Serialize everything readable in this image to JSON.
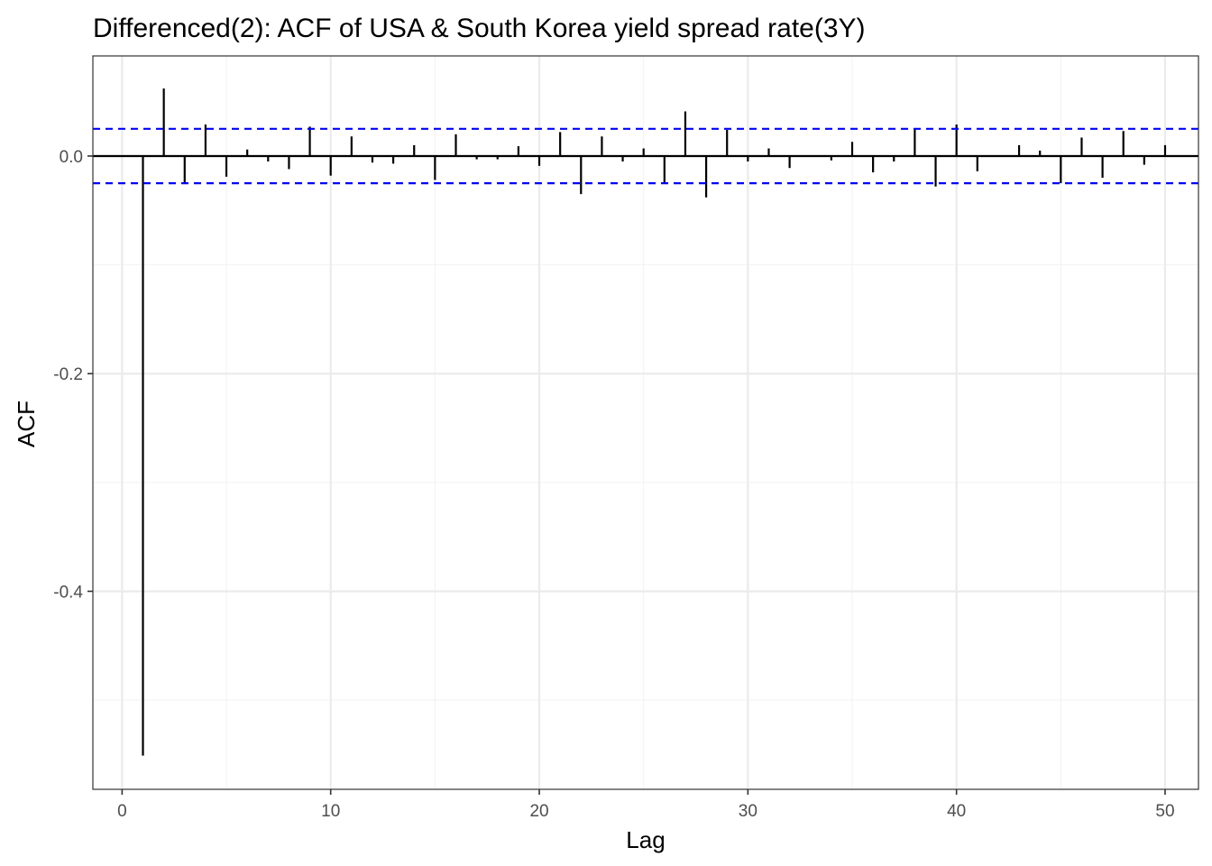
{
  "chart_data": {
    "type": "bar",
    "title": "Differenced(2): ACF of USA & South Korea yield spread rate(3Y)",
    "xlabel": "Lag",
    "ylabel": "ACF",
    "xlim": [
      -1.4,
      51.6
    ],
    "ylim": [
      -0.582,
      0.092
    ],
    "x_ticks": [
      0,
      10,
      20,
      30,
      40,
      50
    ],
    "x_tick_labels": [
      "0",
      "10",
      "20",
      "30",
      "40",
      "50"
    ],
    "y_ticks": [
      0.0,
      -0.2,
      -0.4
    ],
    "y_tick_labels": [
      "0.0",
      "-0.2",
      "-0.4"
    ],
    "grid": true,
    "confidence_band": 0.025,
    "lags": [
      1,
      2,
      3,
      4,
      5,
      6,
      7,
      8,
      9,
      10,
      11,
      12,
      13,
      14,
      15,
      16,
      17,
      18,
      19,
      20,
      21,
      22,
      23,
      24,
      25,
      26,
      27,
      28,
      29,
      30,
      31,
      32,
      33,
      34,
      35,
      36,
      37,
      38,
      39,
      40,
      41,
      42,
      43,
      44,
      45,
      46,
      47,
      48,
      49,
      50
    ],
    "values": [
      -0.551,
      0.062,
      -0.025,
      0.029,
      -0.019,
      0.006,
      -0.005,
      -0.012,
      0.027,
      -0.018,
      0.018,
      -0.006,
      -0.007,
      0.01,
      -0.022,
      0.02,
      -0.003,
      -0.003,
      0.009,
      -0.009,
      0.022,
      -0.035,
      0.018,
      -0.005,
      0.007,
      -0.025,
      0.041,
      -0.038,
      0.024,
      -0.005,
      0.007,
      -0.011,
      0.0,
      -0.004,
      0.013,
      -0.015,
      -0.005,
      0.025,
      -0.028,
      0.029,
      -0.014,
      0.0,
      0.01,
      0.005,
      -0.025,
      0.017,
      -0.02,
      0.023,
      -0.008,
      0.01
    ],
    "colors": {
      "bars": "#000000",
      "confidence_lines": "#0000ff",
      "grid_major": "#ebebeb",
      "grid_minor": "#f3f3f3",
      "panel_border": "#333333"
    }
  }
}
